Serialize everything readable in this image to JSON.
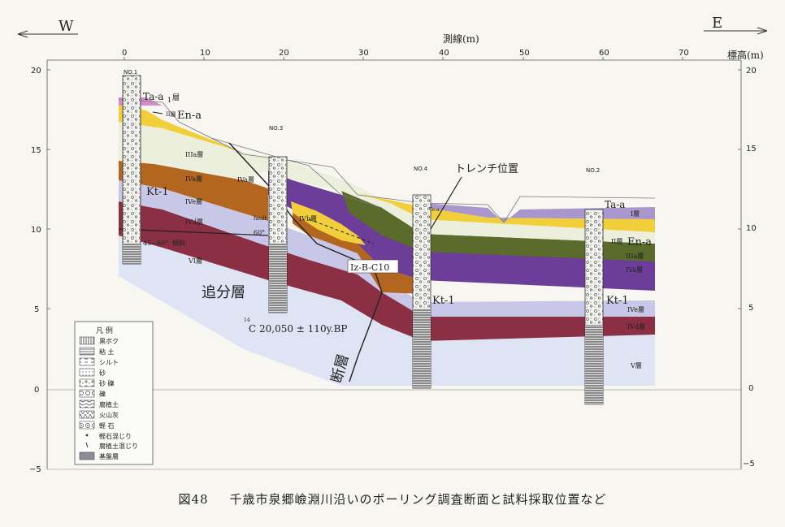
{
  "header": {
    "west": "W",
    "east": "E",
    "x_axis_label": "測線(m)",
    "y_axis_label": "標高(m)"
  },
  "axes": {
    "x_ticks": [
      "0",
      "10",
      "20",
      "30",
      "40",
      "50",
      "60",
      "70"
    ],
    "y_ticks_left": [
      "20",
      "15",
      "10",
      "5",
      "0",
      "−5"
    ],
    "y_ticks_right": [
      "20",
      "15",
      "10",
      "5",
      "0",
      "−5"
    ]
  },
  "boreholes": {
    "no1": "NO.1",
    "no2": "NO.2",
    "no3": "NO.3",
    "no4": "NO.4"
  },
  "labels": {
    "ta_a1": "Ta-a",
    "ta_a1_sub": "1",
    "ta_a1_layer": "層",
    "ta_a2": "Ta-a",
    "layer2_left": "II層",
    "en_a_left": "En-a",
    "en_a_right": "En-a",
    "iiia_left": "IIIa層",
    "iva_left": "IVa層",
    "ive_left": "IVe層",
    "ivd_left": "IVd層",
    "kt1_left": "Kt-1",
    "kt1_mid": "Kt-1",
    "kt1_right": "Kt-1",
    "angle": "45−60°",
    "tilt": "傾斜",
    "vi_layer": "VI層",
    "oiwake": "追分層",
    "iva_mid": "IVa層",
    "fault_small": "fault",
    "deg60": "60°",
    "ivb": "IVb層",
    "trench": "トレンチ位置",
    "iz": "Iz-B-C10",
    "c14": "C 20,050 ± 110y.BP",
    "c14_sup": "14",
    "fault_big": "断層",
    "i_layer": "I層",
    "ii_layer": "II層",
    "iiia_right": "IIIa層",
    "iva_right": "IVa層",
    "ive_right": "IVe層",
    "ivd_right": "IVd層",
    "v_layer": "V層",
    "tea_small": "Te-a"
  },
  "legend": {
    "title": "凡 例",
    "items": [
      {
        "label": "黒ボク",
        "pattern": "vlines"
      },
      {
        "label": "粘 土",
        "pattern": "hlines"
      },
      {
        "label": "シルト",
        "pattern": "dash"
      },
      {
        "label": "砂",
        "pattern": "dots"
      },
      {
        "label": "砂 礫",
        "pattern": "gravel"
      },
      {
        "label": "礫",
        "pattern": "circles"
      },
      {
        "label": "腐植土",
        "pattern": "wave"
      },
      {
        "label": "火山灰",
        "pattern": "ash"
      },
      {
        "label": "軽 石",
        "pattern": "pumice"
      },
      {
        "label": "軽石混じり",
        "pattern": "symbol_p"
      },
      {
        "label": "腐植土混じり",
        "pattern": "symbol_r"
      },
      {
        "label": "基盤層",
        "pattern": "base"
      }
    ]
  },
  "colors": {
    "black_soil": "#e6e1b5",
    "yellow": "#f1cf3a",
    "iiia": "#ecefdc",
    "green": "#5a6b2c",
    "purple": "#6c3d99",
    "brown": "#b3661f",
    "lilac": "#c9c7e7",
    "maroon": "#8a2f44",
    "light": "#dfe4f4",
    "top_lilac": "#a996cc"
  },
  "caption": {
    "fig_no": "図48",
    "text": "千歳市泉郷嶮淵川沿いのボーリング調査断面と試料採取位置など"
  }
}
